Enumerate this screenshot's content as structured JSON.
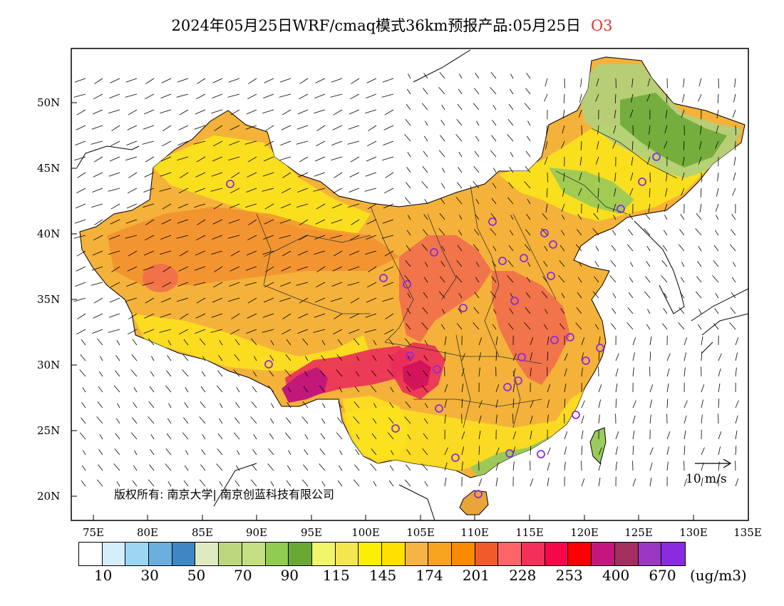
{
  "title": {
    "text": "2024年05月25日WRF/cmaq模式36km预报产品:05月25日",
    "species": "O3"
  },
  "axes": {
    "lat_ticks": [
      "50N",
      "45N",
      "40N",
      "35N",
      "30N",
      "25N",
      "20N"
    ],
    "lon_ticks": [
      "75E",
      "80E",
      "85E",
      "90E",
      "95E",
      "100E",
      "105E",
      "110E",
      "115E",
      "120E",
      "125E",
      "130E",
      "135E"
    ],
    "lon_range": [
      73,
      135
    ],
    "lat_range": [
      18,
      54
    ]
  },
  "copyright": "版权所有: 南京大学| 南京创蓝科技有限公司",
  "wind_reference": "10 m/s",
  "legend": {
    "unit": "(ug/m3)",
    "labels": [
      "10",
      "30",
      "50",
      "70",
      "90",
      "115",
      "145",
      "174",
      "201",
      "228",
      "253",
      "400",
      "670"
    ],
    "colors": [
      "#ffffff",
      "#d4eefb",
      "#9dd6f2",
      "#6aaee0",
      "#3f87c2",
      "#e0eac0",
      "#bcd77d",
      "#c4df82",
      "#90cc50",
      "#6aa834",
      "#f0f56a",
      "#f4e74e",
      "#fbee00",
      "#ffe000",
      "#f6b446",
      "#f9a421",
      "#fc8a00",
      "#f15a2a",
      "#ff6468",
      "#f33057",
      "#f6074a",
      "#fc0000",
      "#c5167e",
      "#a42e5e",
      "#9a38c4",
      "#8a2be2"
    ]
  },
  "map_colors": {
    "land_background": "#f4b23a",
    "north_high": "#f28b2f",
    "southwest_peak": "#c2187a",
    "sichuan_high": "#ea2e5a",
    "east_high": "#f0694d",
    "northeast_low": "#b3d07a",
    "northeast_green": "#6aa834",
    "coast_green": "#98c95a",
    "yellow_belt": "#fbe31d"
  },
  "monitor_station_color": "#8a2be2"
}
